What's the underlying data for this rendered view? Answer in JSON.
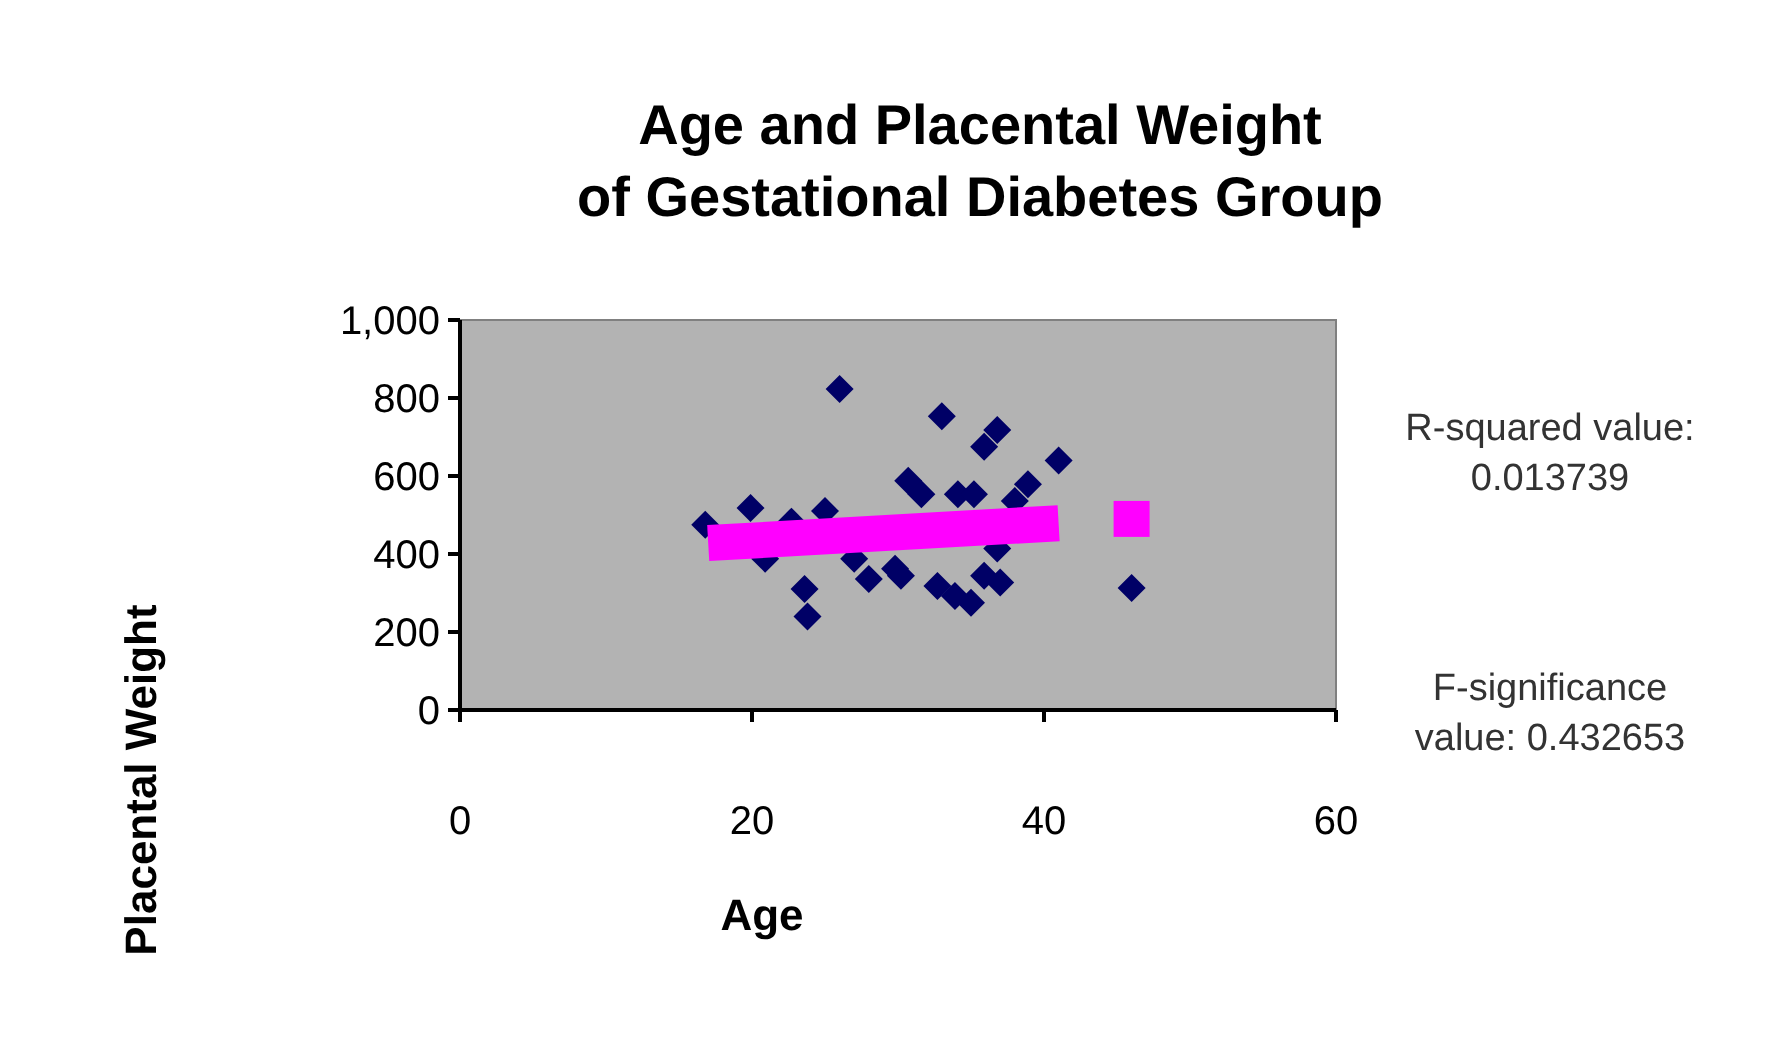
{
  "chart_data": {
    "type": "scatter",
    "title": "Age and Placental Weight\nof Gestational Diabetes Group",
    "xlabel": "Age",
    "ylabel": "Placental Weight",
    "xlim": [
      0,
      60
    ],
    "xticks": [
      0,
      20,
      40,
      60
    ],
    "ylim": [
      0,
      1000
    ],
    "yticks": [
      0,
      200,
      400,
      600,
      800,
      {
        "value": 1000,
        "label": "1,000"
      }
    ],
    "grid": false,
    "series": [
      {
        "marker": "diamond",
        "color": "#000066",
        "x": [
          26,
          33,
          36.8,
          35.9,
          41,
          30.7,
          31.6,
          38.9,
          38,
          34.1,
          35.2,
          19.9,
          25,
          16.8,
          22.7,
          20.9,
          27,
          28,
          29.8,
          30.2,
          23.6,
          23.8,
          32.7,
          33.9,
          35,
          35.9,
          37,
          36.8,
          46
        ],
        "values": [
          823,
          753,
          718,
          675,
          640,
          588,
          553,
          579,
          536,
          553,
          553,
          518,
          510,
          475,
          483,
          388,
          388,
          336,
          362,
          344,
          310,
          240,
          318,
          292,
          275,
          344,
          327,
          414,
          313
        ]
      },
      {
        "type": "line",
        "color": "#ff00ff",
        "x": [
          17,
          41
        ],
        "values": [
          428,
          479
        ]
      },
      {
        "marker": "square",
        "color": "#ff00ff",
        "x": [
          46
        ],
        "values": [
          490
        ]
      }
    ],
    "annotations": [
      "R-squared value:\n0.013739",
      "F-significance\nvalue: 0.432653"
    ]
  }
}
